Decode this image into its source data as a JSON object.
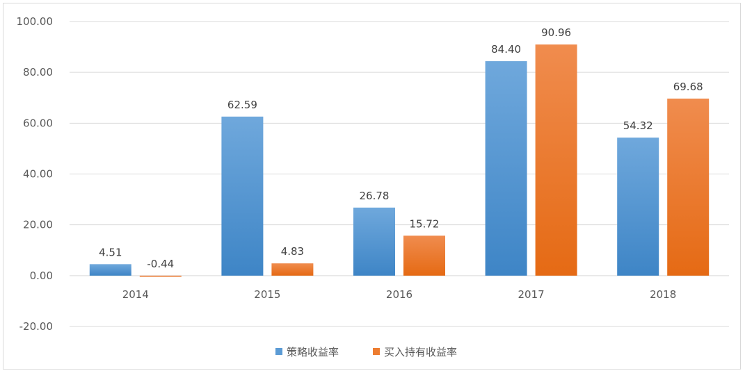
{
  "chart_data": {
    "type": "bar",
    "title": "",
    "xlabel": "",
    "ylabel": "",
    "categories": [
      "2014",
      "2015",
      "2016",
      "2017",
      "2018"
    ],
    "series": [
      {
        "name": "策略收益率",
        "values": [
          4.51,
          62.59,
          26.78,
          84.4,
          54.32
        ],
        "labels": [
          "4.51",
          "62.59",
          "26.78",
          "84.40",
          "54.32"
        ],
        "color": "#5B9BD5"
      },
      {
        "name": "买入持有收益率",
        "values": [
          -0.44,
          4.83,
          15.72,
          90.96,
          69.68
        ],
        "labels": [
          "-0.44",
          "4.83",
          "15.72",
          "90.96",
          "69.68"
        ],
        "color": "#ED7D31"
      }
    ],
    "ylim": [
      -20,
      100
    ],
    "yticks": [
      "-20.00",
      "0.00",
      "20.00",
      "40.00",
      "60.00",
      "80.00",
      "100.00"
    ],
    "grid": true,
    "legend_position": "bottom-center"
  }
}
